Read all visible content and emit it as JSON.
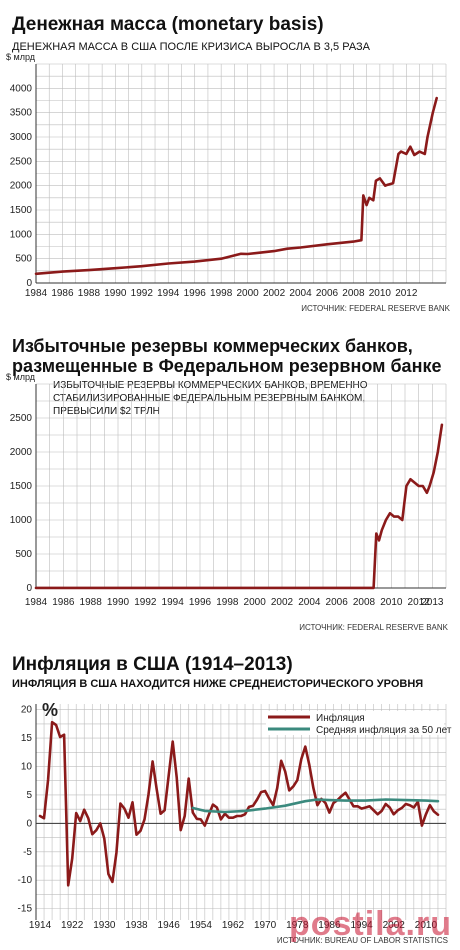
{
  "charts_text": {
    "c1_title": "Денежная масса (monetary basis)",
    "c1_subtitle": "ДЕНЕЖНАЯ МАССА В США ПОСЛЕ КРИЗИСА ВЫРОСЛА В 3,5 РАЗА",
    "c1_source": "ИСТОЧНИК: FEDERAL RESERVE BANK",
    "c2_title_line1": "Избыточные резервы коммерческих банков,",
    "c2_title_line2": "размещенные в Федеральном резервном банке",
    "c2_subtitle_line1": "ИЗБЫТОЧНЫЕ РЕЗЕРВЫ КОММЕРЧЕСКИХ БАНКОВ, ВРЕМЕННО",
    "c2_subtitle_line2": "СТАБИЛИЗИРОВАННЫЕ ФЕДЕРАЛЬНЫМ РЕЗЕРВНЫМ БАНКОМ,",
    "c2_subtitle_line3": "ПРЕВЫСИЛИ $2 ТРЛН",
    "c2_source": "ИСТОЧНИК: FEDERAL RESERVE BANK",
    "c3_title": "Инфляция в США (1914–2013)",
    "c3_subtitle": "ИНФЛЯЦИЯ В США НАХОДИТСЯ НИЖЕ СРЕДНЕИСТОРИЧЕСКОГО УРОВНЯ",
    "c3_source": "ИСТОЧНИК: BUREAU OF LABOR STATISTICS",
    "watermark": "postila.ru"
  },
  "colors": {
    "series": "#8b1a1a",
    "average": "#3b8a7e",
    "grid": "#bdbdbd",
    "axis": "#333333"
  },
  "chart_data": [
    {
      "type": "line",
      "title": "Денежная масса (monetary basis)",
      "subtitle": "ДЕНЕЖНАЯ МАССА В США ПОСЛЕ КРИЗИСА ВЫРОСЛА В 3,5 РАЗА",
      "ylabel": "$ млрд",
      "ylim": [
        0,
        4500
      ],
      "yticks": [
        0,
        500,
        1000,
        1500,
        2000,
        2500,
        3000,
        3500,
        4000
      ],
      "xlim": [
        1984,
        2015
      ],
      "xticks": [
        1984,
        1986,
        1988,
        1990,
        1992,
        1994,
        1996,
        1998,
        2000,
        2002,
        2004,
        2006,
        2008,
        2010,
        2012
      ],
      "grid": true,
      "source": "ИСТОЧНИК: FEDERAL RESERVE BANK",
      "series": [
        {
          "x": [
            1984,
            1986,
            1988,
            1990,
            1992,
            1994,
            1996,
            1998,
            1999.5,
            2000,
            2001,
            2002,
            2003,
            2004,
            2006,
            2008,
            2008.6,
            2008.75,
            2009.0,
            2009.2,
            2009.5,
            2009.7,
            2010,
            2010.4,
            2010.6,
            2011,
            2011.4,
            2011.6,
            2012,
            2012.3,
            2012.6,
            2013,
            2013.4,
            2013.6,
            2014,
            2014.3
          ],
          "y": [
            190,
            235,
            265,
            305,
            345,
            400,
            440,
            500,
            600,
            595,
            625,
            655,
            705,
            730,
            795,
            850,
            880,
            1800,
            1600,
            1750,
            1700,
            2100,
            2150,
            2000,
            2020,
            2050,
            2650,
            2700,
            2650,
            2800,
            2630,
            2700,
            2650,
            3000,
            3500,
            3800
          ]
        }
      ]
    },
    {
      "type": "line",
      "title": "Избыточные резервы коммерческих банков, размещенные в Федеральном резервном банке",
      "subtitle": "ИЗБЫТОЧНЫЕ РЕЗЕРВЫ КОММЕРЧЕСКИХ БАНКОВ, ВРЕМЕННО СТАБИЛИЗИРОВАННЫЕ ФЕДЕРАЛЬНЫМ РЕЗЕРВНЫМ БАНКОМ, ПРЕВЫСИЛИ $2 ТРЛН",
      "ylabel": "$ млрд",
      "ylim": [
        0,
        3000
      ],
      "yticks": [
        0,
        500,
        1000,
        1500,
        2000,
        2500
      ],
      "xlim": [
        1984,
        2014
      ],
      "xticks": [
        1984,
        1986,
        1988,
        1990,
        1992,
        1994,
        1996,
        1998,
        2000,
        2002,
        2004,
        2006,
        2008,
        2010,
        2012,
        2013
      ],
      "grid": true,
      "source": "ИСТОЧНИК: FEDERAL RESERVE BANK",
      "series": [
        {
          "x": [
            1984,
            2008.7,
            2008.9,
            2009.1,
            2009.3,
            2009.6,
            2009.9,
            2010.2,
            2010.5,
            2010.8,
            2011.1,
            2011.4,
            2011.7,
            2012.0,
            2012.3,
            2012.6,
            2012.8,
            2013.1,
            2013.4,
            2013.7
          ],
          "y": [
            2,
            2,
            800,
            700,
            850,
            1000,
            1100,
            1050,
            1050,
            1000,
            1500,
            1600,
            1550,
            1500,
            1500,
            1400,
            1500,
            1700,
            2000,
            2400
          ]
        }
      ]
    },
    {
      "type": "line",
      "title": "Инфляция в США (1914–2013)",
      "subtitle": "ИНФЛЯЦИЯ В США НАХОДИТСЯ НИЖЕ СРЕДНЕИСТОРИЧЕСКОГО УРОВНЯ",
      "ylabel": "%",
      "ylim": [
        -17,
        21
      ],
      "yticks": [
        -15,
        -10,
        -5,
        0,
        5,
        10,
        15,
        20
      ],
      "xlim": [
        1913,
        2015
      ],
      "xticks": [
        1914,
        1922,
        1930,
        1938,
        1946,
        1954,
        1962,
        1970,
        1978,
        1986,
        1994,
        2002,
        2010
      ],
      "grid": true,
      "legend": "top-right",
      "source": "ИСТОЧНИК: BUREAU OF LABOR STATISTICS",
      "series": [
        {
          "name": "Инфляция",
          "x": [
            1914,
            1915,
            1916,
            1917,
            1918,
            1919,
            1920,
            1921,
            1922,
            1923,
            1924,
            1925,
            1926,
            1927,
            1928,
            1929,
            1930,
            1931,
            1932,
            1933,
            1934,
            1935,
            1936,
            1937,
            1938,
            1939,
            1940,
            1941,
            1942,
            1943,
            1944,
            1945,
            1946,
            1947,
            1948,
            1949,
            1950,
            1951,
            1952,
            1953,
            1954,
            1955,
            1956,
            1957,
            1958,
            1959,
            1960,
            1961,
            1962,
            1963,
            1964,
            1965,
            1966,
            1967,
            1968,
            1969,
            1970,
            1971,
            1972,
            1973,
            1974,
            1975,
            1976,
            1977,
            1978,
            1979,
            1980,
            1981,
            1982,
            1983,
            1984,
            1985,
            1986,
            1987,
            1988,
            1989,
            1990,
            1991,
            1992,
            1993,
            1994,
            1995,
            1996,
            1997,
            1998,
            1999,
            2000,
            2001,
            2002,
            2003,
            2004,
            2005,
            2006,
            2007,
            2008,
            2009,
            2010,
            2011,
            2012,
            2013
          ],
          "y": [
            1.3,
            0.9,
            7.7,
            17.8,
            17.3,
            15.2,
            15.6,
            -10.9,
            -6.2,
            1.8,
            0.4,
            2.4,
            0.9,
            -1.9,
            -1.2,
            0.0,
            -2.7,
            -8.9,
            -10.3,
            -5.2,
            3.5,
            2.6,
            1.0,
            3.7,
            -2.0,
            -1.3,
            0.7,
            5.1,
            10.9,
            6.1,
            1.7,
            2.3,
            8.3,
            14.4,
            8.1,
            -1.2,
            1.3,
            7.9,
            1.9,
            0.8,
            0.7,
            -0.4,
            1.5,
            3.3,
            2.8,
            0.7,
            1.7,
            1.0,
            1.0,
            1.3,
            1.3,
            1.6,
            2.9,
            3.1,
            4.2,
            5.5,
            5.7,
            4.4,
            3.2,
            6.2,
            11.0,
            9.1,
            5.8,
            6.5,
            7.6,
            11.3,
            13.5,
            10.3,
            6.2,
            3.2,
            4.3,
            3.6,
            1.9,
            3.6,
            4.1,
            4.8,
            5.4,
            4.2,
            3.0,
            3.0,
            2.6,
            2.8,
            3.0,
            2.3,
            1.6,
            2.2,
            3.4,
            2.8,
            1.6,
            2.3,
            2.7,
            3.4,
            3.2,
            2.8,
            3.8,
            -0.4,
            1.6,
            3.2,
            2.1,
            1.5
          ]
        },
        {
          "name": "Средняя инфляция за 50 лет",
          "x": [
            1952,
            1955,
            1960,
            1965,
            1970,
            1975,
            1980,
            1983,
            1986,
            1990,
            1995,
            2000,
            2005,
            2010,
            2013
          ],
          "y": [
            2.7,
            2.2,
            2.0,
            2.2,
            2.6,
            3.1,
            3.9,
            4.2,
            4.1,
            4.0,
            4.0,
            4.2,
            4.1,
            4.0,
            3.9
          ]
        }
      ]
    }
  ]
}
